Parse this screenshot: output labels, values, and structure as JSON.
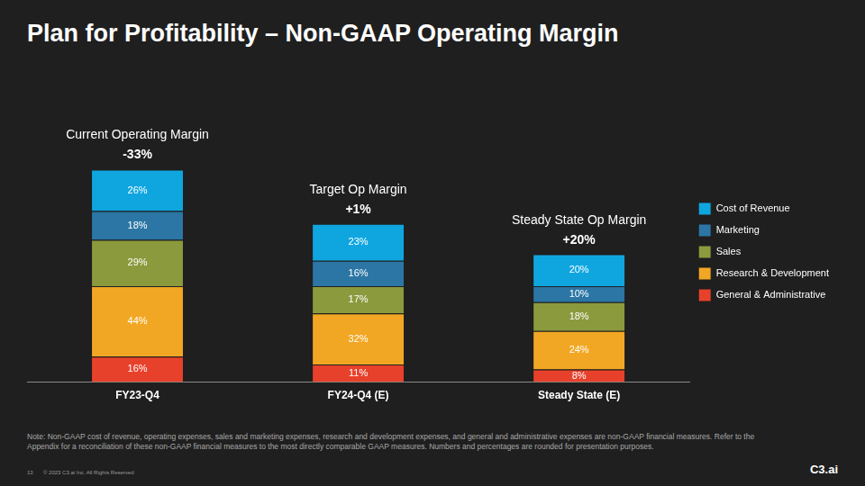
{
  "chart_data": {
    "type": "bar",
    "title": "Plan for Profitability – Non-GAAP Operating Margin",
    "categories": [
      "FY23-Q4",
      "FY24-Q4 (E)",
      "Steady State (E)"
    ],
    "series": [
      {
        "name": "General & Administrative",
        "color": "#e8412b",
        "values": [
          16,
          11,
          8
        ],
        "value_labels": [
          "16%",
          "11%",
          "8%"
        ]
      },
      {
        "name": "Research & Development",
        "color": "#f2a724",
        "values": [
          44,
          32,
          24
        ],
        "value_labels": [
          "44%",
          "32%",
          "24%"
        ]
      },
      {
        "name": "Sales",
        "color": "#8b9a3d",
        "values": [
          29,
          17,
          18
        ],
        "value_labels": [
          "29%",
          "17%",
          "18%"
        ]
      },
      {
        "name": "Marketing",
        "color": "#2b76a5",
        "values": [
          18,
          16,
          10
        ],
        "value_labels": [
          "18%",
          "16%",
          "10%"
        ]
      },
      {
        "name": "Cost of Revenue",
        "color": "#0fa6e0",
        "values": [
          26,
          23,
          20
        ],
        "value_labels": [
          "26%",
          "23%",
          "20%"
        ]
      }
    ],
    "stacked": true,
    "data_labels": true,
    "grid": false,
    "legend": "right",
    "tick_labels": "x",
    "ylim": [
      0,
      180
    ],
    "annotations": [
      {
        "category": "FY23-Q4",
        "text": "Current Operating Margin",
        "value_text": "-33%"
      },
      {
        "category": "FY24-Q4 (E)",
        "text": "Target Op Margin",
        "value_text": "+1%"
      },
      {
        "category": "Steady State (E)",
        "text": "Steady State Op Margin",
        "value_text": "+20%"
      }
    ]
  },
  "note": "Note: Non-GAAP cost of revenue, operating expenses, sales and marketing expenses, research and development expenses, and general and administrative expenses are non-GAAP financial measures. Refer to the Appendix for a reconciliation of these non-GAAP financial measures to the most directly comparable GAAP measures. Numbers and percentages are rounded for presentation purposes.",
  "page_number": "13",
  "copyright": "© 2023 C3.ai Inc. All Rights Reserved",
  "logo": "C3.ai"
}
